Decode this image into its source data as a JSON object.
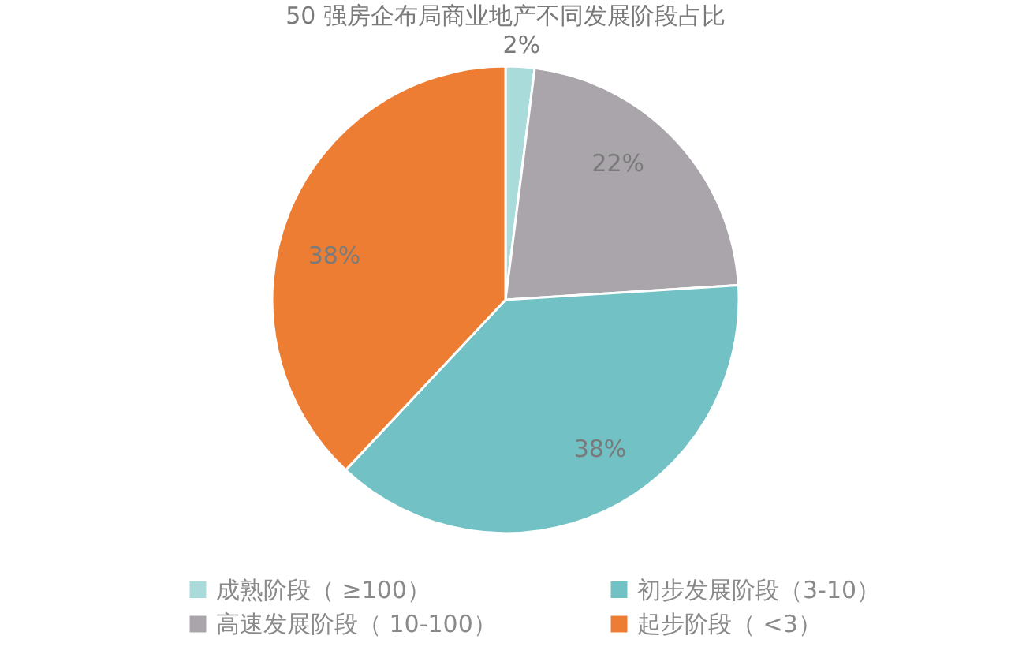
{
  "chart_data": {
    "type": "pie",
    "title": "50 强房企布局商业地产不同发展阶段占比",
    "categories": [
      "成熟阶段（ ≥100）",
      "高速发展阶段（ 10-100）",
      "初步发展阶段（3-10）",
      "起步阶段（ <3）"
    ],
    "values": [
      2,
      22,
      38,
      38
    ],
    "colors": [
      "#a9dbdb",
      "#a9a5aa",
      "#72c1c4",
      "#ee7d34"
    ],
    "value_labels": [
      "2%",
      "22%",
      "38%",
      "38%"
    ],
    "legend": "bottom"
  }
}
